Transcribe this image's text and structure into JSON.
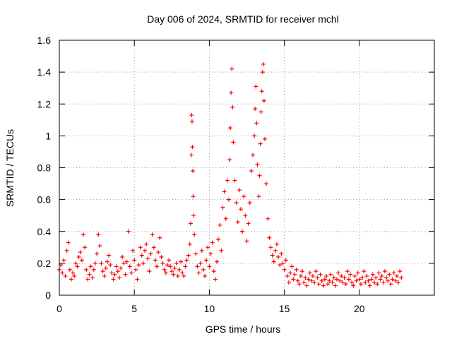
{
  "chart_data": {
    "type": "scatter",
    "title": "Day 006 of 2024, SRMTID for receiver mchl",
    "xlabel": "GPS time / hours",
    "ylabel": "SRMTID / TECUs",
    "xlim": [
      0,
      25
    ],
    "ylim": [
      0,
      1.6
    ],
    "x_ticks": [
      0,
      5,
      10,
      15,
      20
    ],
    "x_tick_labels": [
      "0",
      "5",
      "10",
      "15",
      "20"
    ],
    "y_ticks": [
      0,
      0.2,
      0.4,
      0.6,
      0.8,
      1.0,
      1.2,
      1.4,
      1.6
    ],
    "y_tick_labels": [
      "0",
      "0.2",
      "0.4",
      "0.6",
      "0.8",
      "1",
      "1.2",
      "1.4",
      "1.6"
    ],
    "grid": true,
    "marker": "+",
    "color": "#ff0000",
    "series": [
      {
        "name": "mchl",
        "points": [
          [
            0.0,
            0.16
          ],
          [
            0.1,
            0.19
          ],
          [
            0.2,
            0.14
          ],
          [
            0.3,
            0.22
          ],
          [
            0.4,
            0.12
          ],
          [
            0.5,
            0.28
          ],
          [
            0.6,
            0.33
          ],
          [
            0.7,
            0.16
          ],
          [
            0.8,
            0.1
          ],
          [
            0.9,
            0.14
          ],
          [
            1.0,
            0.12
          ],
          [
            1.1,
            0.2
          ],
          [
            1.2,
            0.18
          ],
          [
            1.3,
            0.24
          ],
          [
            1.4,
            0.27
          ],
          [
            1.5,
            0.22
          ],
          [
            1.6,
            0.38
          ],
          [
            1.7,
            0.3
          ],
          [
            1.8,
            0.16
          ],
          [
            1.9,
            0.1
          ],
          [
            2.0,
            0.13
          ],
          [
            2.1,
            0.18
          ],
          [
            2.2,
            0.11
          ],
          [
            2.3,
            0.16
          ],
          [
            2.4,
            0.2
          ],
          [
            2.5,
            0.26
          ],
          [
            2.6,
            0.38
          ],
          [
            2.7,
            0.31
          ],
          [
            2.8,
            0.2
          ],
          [
            2.9,
            0.15
          ],
          [
            3.0,
            0.12
          ],
          [
            3.1,
            0.17
          ],
          [
            3.2,
            0.21
          ],
          [
            3.3,
            0.25
          ],
          [
            3.4,
            0.19
          ],
          [
            3.5,
            0.14
          ],
          [
            3.6,
            0.1
          ],
          [
            3.7,
            0.13
          ],
          [
            3.8,
            0.18
          ],
          [
            3.9,
            0.15
          ],
          [
            4.0,
            0.11
          ],
          [
            4.1,
            0.17
          ],
          [
            4.2,
            0.24
          ],
          [
            4.3,
            0.2
          ],
          [
            4.4,
            0.13
          ],
          [
            4.5,
            0.21
          ],
          [
            4.6,
            0.4
          ],
          [
            4.7,
            0.18
          ],
          [
            4.8,
            0.14
          ],
          [
            4.9,
            0.28
          ],
          [
            5.0,
            0.22
          ],
          [
            5.1,
            0.16
          ],
          [
            5.2,
            0.1
          ],
          [
            5.3,
            0.19
          ],
          [
            5.4,
            0.3
          ],
          [
            5.5,
            0.25
          ],
          [
            5.6,
            0.2
          ],
          [
            5.7,
            0.28
          ],
          [
            5.8,
            0.32
          ],
          [
            5.9,
            0.23
          ],
          [
            6.0,
            0.15
          ],
          [
            6.1,
            0.26
          ],
          [
            6.2,
            0.38
          ],
          [
            6.3,
            0.3
          ],
          [
            6.4,
            0.22
          ],
          [
            6.5,
            0.18
          ],
          [
            6.6,
            0.27
          ],
          [
            6.7,
            0.36
          ],
          [
            6.8,
            0.24
          ],
          [
            6.9,
            0.2
          ],
          [
            7.0,
            0.16
          ],
          [
            7.1,
            0.14
          ],
          [
            7.2,
            0.19
          ],
          [
            7.3,
            0.22
          ],
          [
            7.4,
            0.18
          ],
          [
            7.5,
            0.15
          ],
          [
            7.6,
            0.13
          ],
          [
            7.7,
            0.17
          ],
          [
            7.8,
            0.2
          ],
          [
            7.9,
            0.12
          ],
          [
            8.0,
            0.16
          ],
          [
            8.1,
            0.21
          ],
          [
            8.2,
            0.14
          ],
          [
            8.3,
            0.12
          ],
          [
            8.4,
            0.18
          ],
          [
            8.5,
            0.22
          ],
          [
            8.6,
            0.25
          ],
          [
            8.7,
            0.32
          ],
          [
            8.75,
            0.45
          ],
          [
            8.8,
            0.88
          ],
          [
            8.82,
            1.13
          ],
          [
            8.85,
            1.09
          ],
          [
            8.87,
            0.93
          ],
          [
            8.9,
            0.78
          ],
          [
            8.92,
            0.62
          ],
          [
            8.95,
            0.5
          ],
          [
            9.0,
            0.38
          ],
          [
            9.1,
            0.26
          ],
          [
            9.2,
            0.18
          ],
          [
            9.3,
            0.14
          ],
          [
            9.4,
            0.2
          ],
          [
            9.5,
            0.28
          ],
          [
            9.6,
            0.16
          ],
          [
            9.7,
            0.12
          ],
          [
            9.8,
            0.22
          ],
          [
            9.9,
            0.3
          ],
          [
            10.0,
            0.18
          ],
          [
            10.1,
            0.26
          ],
          [
            10.2,
            0.33
          ],
          [
            10.3,
            0.15
          ],
          [
            10.4,
            0.1
          ],
          [
            10.5,
            0.21
          ],
          [
            10.6,
            0.35
          ],
          [
            10.7,
            0.44
          ],
          [
            10.8,
            0.28
          ],
          [
            10.9,
            0.55
          ],
          [
            11.0,
            0.65
          ],
          [
            11.1,
            0.48
          ],
          [
            11.2,
            0.72
          ],
          [
            11.3,
            0.6
          ],
          [
            11.35,
            0.85
          ],
          [
            11.4,
            1.05
          ],
          [
            11.45,
            1.27
          ],
          [
            11.5,
            1.42
          ],
          [
            11.55,
            1.18
          ],
          [
            11.6,
            0.96
          ],
          [
            11.7,
            0.72
          ],
          [
            11.8,
            0.58
          ],
          [
            11.9,
            0.46
          ],
          [
            12.0,
            0.66
          ],
          [
            12.1,
            0.54
          ],
          [
            12.2,
            0.4
          ],
          [
            12.3,
            0.62
          ],
          [
            12.4,
            0.5
          ],
          [
            12.5,
            0.34
          ],
          [
            12.6,
            0.45
          ],
          [
            12.7,
            0.58
          ],
          [
            12.8,
            0.78
          ],
          [
            12.9,
            0.88
          ],
          [
            13.0,
            1.0
          ],
          [
            13.05,
            1.17
          ],
          [
            13.1,
            1.31
          ],
          [
            13.15,
            1.08
          ],
          [
            13.2,
            0.82
          ],
          [
            13.3,
            0.62
          ],
          [
            13.35,
            0.75
          ],
          [
            13.4,
            0.95
          ],
          [
            13.45,
            1.15
          ],
          [
            13.5,
            1.28
          ],
          [
            13.55,
            1.4
          ],
          [
            13.6,
            1.45
          ],
          [
            13.65,
            1.22
          ],
          [
            13.7,
            0.98
          ],
          [
            13.8,
            0.7
          ],
          [
            13.9,
            0.48
          ],
          [
            14.0,
            0.36
          ],
          [
            14.1,
            0.3
          ],
          [
            14.2,
            0.25
          ],
          [
            14.3,
            0.21
          ],
          [
            14.4,
            0.28
          ],
          [
            14.5,
            0.32
          ],
          [
            14.6,
            0.24
          ],
          [
            14.7,
            0.19
          ],
          [
            14.8,
            0.26
          ],
          [
            14.9,
            0.2
          ],
          [
            15.0,
            0.16
          ],
          [
            15.1,
            0.22
          ],
          [
            15.2,
            0.12
          ],
          [
            15.3,
            0.08
          ],
          [
            15.4,
            0.14
          ],
          [
            15.5,
            0.18
          ],
          [
            15.6,
            0.1
          ],
          [
            15.7,
            0.13
          ],
          [
            15.8,
            0.16
          ],
          [
            15.9,
            0.09
          ],
          [
            16.0,
            0.07
          ],
          [
            16.1,
            0.12
          ],
          [
            16.2,
            0.15
          ],
          [
            16.3,
            0.08
          ],
          [
            16.4,
            0.11
          ],
          [
            16.5,
            0.06
          ],
          [
            16.6,
            0.1
          ],
          [
            16.7,
            0.14
          ],
          [
            16.8,
            0.09
          ],
          [
            16.9,
            0.12
          ],
          [
            17.0,
            0.08
          ],
          [
            17.1,
            0.15
          ],
          [
            17.2,
            0.11
          ],
          [
            17.3,
            0.07
          ],
          [
            17.4,
            0.13
          ],
          [
            17.5,
            0.09
          ],
          [
            17.6,
            0.06
          ],
          [
            17.7,
            0.1
          ],
          [
            17.8,
            0.12
          ],
          [
            17.9,
            0.07
          ],
          [
            18.0,
            0.09
          ],
          [
            18.1,
            0.13
          ],
          [
            18.2,
            0.08
          ],
          [
            18.3,
            0.11
          ],
          [
            18.4,
            0.06
          ],
          [
            18.5,
            0.1
          ],
          [
            18.6,
            0.14
          ],
          [
            18.7,
            0.09
          ],
          [
            18.8,
            0.12
          ],
          [
            18.9,
            0.08
          ],
          [
            19.0,
            0.11
          ],
          [
            19.1,
            0.07
          ],
          [
            19.2,
            0.15
          ],
          [
            19.3,
            0.1
          ],
          [
            19.4,
            0.13
          ],
          [
            19.5,
            0.08
          ],
          [
            19.6,
            0.06
          ],
          [
            19.7,
            0.12
          ],
          [
            19.8,
            0.09
          ],
          [
            19.9,
            0.14
          ],
          [
            20.0,
            0.1
          ],
          [
            20.1,
            0.07
          ],
          [
            20.2,
            0.11
          ],
          [
            20.3,
            0.15
          ],
          [
            20.4,
            0.08
          ],
          [
            20.5,
            0.12
          ],
          [
            20.6,
            0.09
          ],
          [
            20.7,
            0.06
          ],
          [
            20.8,
            0.1
          ],
          [
            20.9,
            0.13
          ],
          [
            21.0,
            0.08
          ],
          [
            21.1,
            0.11
          ],
          [
            21.2,
            0.07
          ],
          [
            21.3,
            0.14
          ],
          [
            21.4,
            0.1
          ],
          [
            21.5,
            0.12
          ],
          [
            21.6,
            0.08
          ],
          [
            21.7,
            0.15
          ],
          [
            21.8,
            0.11
          ],
          [
            21.9,
            0.09
          ],
          [
            22.0,
            0.13
          ],
          [
            22.1,
            0.07
          ],
          [
            22.2,
            0.1
          ],
          [
            22.3,
            0.14
          ],
          [
            22.4,
            0.09
          ],
          [
            22.5,
            0.12
          ],
          [
            22.6,
            0.08
          ],
          [
            22.7,
            0.15
          ],
          [
            22.8,
            0.11
          ]
        ]
      }
    ]
  }
}
